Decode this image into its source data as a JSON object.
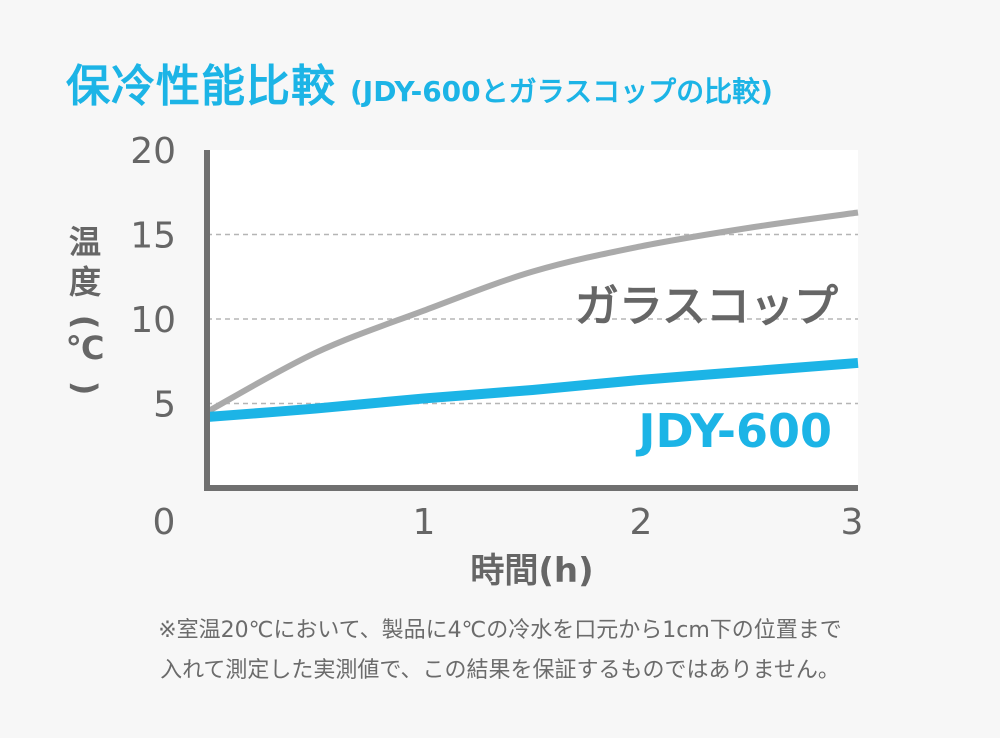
{
  "header": {
    "title": "保冷性能比較",
    "subtitle": "(JDY-600とガラスコップの比較)"
  },
  "colors": {
    "accent": "#1cb4e6",
    "gray_series": "#aaaaaa",
    "axis": "#707070",
    "label_dark": "#666666"
  },
  "chart_data": {
    "type": "line",
    "ylabel": "温度(℃)",
    "xlabel": "時間(h)",
    "xlim": [
      0,
      3
    ],
    "ylim": [
      0,
      20
    ],
    "x_ticks": [
      "0",
      "1",
      "2",
      "3"
    ],
    "y_ticks": [
      "5",
      "10",
      "15",
      "20"
    ],
    "grid": "dashed horizontal at 5, 10, 15",
    "series": [
      {
        "name": "ガラスコップ",
        "color": "#aaaaaa",
        "x": [
          0,
          0.5,
          1,
          1.5,
          2,
          2.5,
          3
        ],
        "values": [
          4.5,
          8.0,
          10.5,
          12.8,
          14.3,
          15.4,
          16.3
        ]
      },
      {
        "name": "JDY-600",
        "color": "#1cb4e6",
        "x": [
          0,
          0.5,
          1,
          1.5,
          2,
          2.5,
          3
        ],
        "values": [
          4.2,
          4.7,
          5.3,
          5.8,
          6.4,
          6.9,
          7.4
        ]
      }
    ]
  },
  "note": {
    "line1": "※室温20℃において、製品に4℃の冷水を口元から1cm下の位置まで",
    "line2": "入れて測定した実測値で、この結果を保証するものではありません。"
  }
}
